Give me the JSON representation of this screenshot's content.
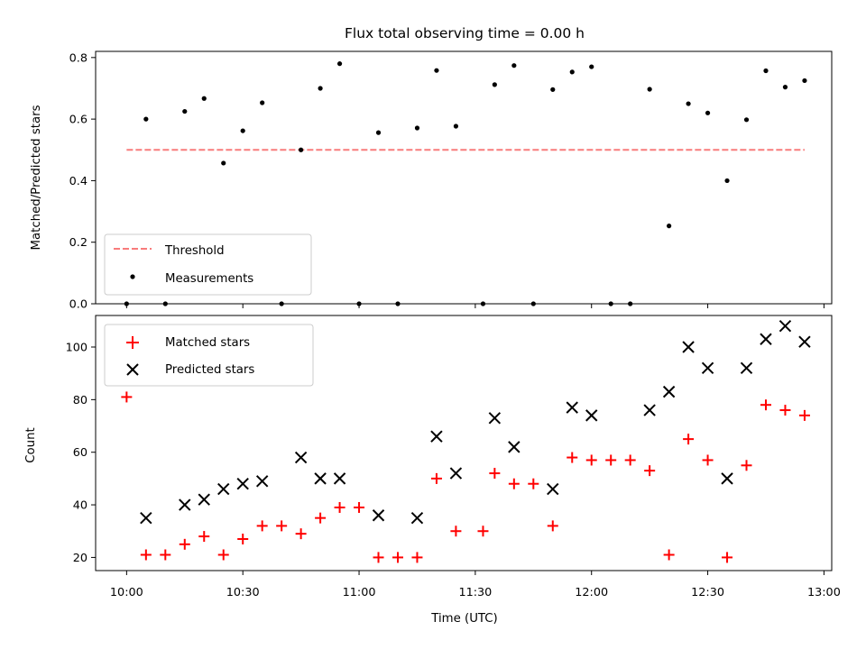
{
  "chart_data": [
    {
      "type": "scatter",
      "title": "Flux total observing time = 0.00 h",
      "xlabel": "",
      "ylabel": "Matched/Predicted stars",
      "ylim": [
        0,
        0.82
      ],
      "xlim": [
        "09:52",
        "13:02"
      ],
      "yticks": [
        "0.0",
        "0.2",
        "0.4",
        "0.6",
        "0.8"
      ],
      "legend_position": "lower-left",
      "threshold": {
        "name": "Threshold",
        "value": 0.5,
        "x_range": [
          "10:00",
          "12:55"
        ],
        "color": "#f87c7c",
        "style": "dashed"
      },
      "series": [
        {
          "name": "Measurements",
          "color": "#000000",
          "marker": "dot",
          "points": [
            {
              "x": "10:00",
              "y": 0.0
            },
            {
              "x": "10:05",
              "y": 0.6
            },
            {
              "x": "10:10",
              "y": 0.0
            },
            {
              "x": "10:15",
              "y": 0.625
            },
            {
              "x": "10:20",
              "y": 0.667
            },
            {
              "x": "10:25",
              "y": 0.457
            },
            {
              "x": "10:30",
              "y": 0.562
            },
            {
              "x": "10:35",
              "y": 0.653
            },
            {
              "x": "10:40",
              "y": 0.0
            },
            {
              "x": "10:45",
              "y": 0.5
            },
            {
              "x": "10:50",
              "y": 0.7
            },
            {
              "x": "10:55",
              "y": 0.78
            },
            {
              "x": "11:00",
              "y": 0.0
            },
            {
              "x": "11:05",
              "y": 0.556
            },
            {
              "x": "11:10",
              "y": 0.0
            },
            {
              "x": "11:15",
              "y": 0.571
            },
            {
              "x": "11:20",
              "y": 0.758
            },
            {
              "x": "11:25",
              "y": 0.577
            },
            {
              "x": "11:32",
              "y": 0.0
            },
            {
              "x": "11:35",
              "y": 0.712
            },
            {
              "x": "11:40",
              "y": 0.774
            },
            {
              "x": "11:45",
              "y": 0.0
            },
            {
              "x": "11:50",
              "y": 0.696
            },
            {
              "x": "11:55",
              "y": 0.753
            },
            {
              "x": "12:00",
              "y": 0.77
            },
            {
              "x": "12:05",
              "y": 0.0
            },
            {
              "x": "12:10",
              "y": 0.0
            },
            {
              "x": "12:15",
              "y": 0.697
            },
            {
              "x": "12:20",
              "y": 0.253
            },
            {
              "x": "12:25",
              "y": 0.65
            },
            {
              "x": "12:30",
              "y": 0.62
            },
            {
              "x": "12:35",
              "y": 0.4
            },
            {
              "x": "12:40",
              "y": 0.598
            },
            {
              "x": "12:45",
              "y": 0.757
            },
            {
              "x": "12:50",
              "y": 0.704
            },
            {
              "x": "12:55",
              "y": 0.725
            }
          ]
        }
      ]
    },
    {
      "type": "scatter",
      "title": "",
      "xlabel": "Time (UTC)",
      "ylabel": "Count",
      "ylim": [
        15,
        112
      ],
      "xlim": [
        "09:52",
        "13:02"
      ],
      "xticks": [
        "10:00",
        "10:30",
        "11:00",
        "11:30",
        "12:00",
        "12:30",
        "13:00"
      ],
      "yticks": [
        "20",
        "40",
        "60",
        "80",
        "100"
      ],
      "legend_position": "top-left",
      "series": [
        {
          "name": "Matched stars",
          "color": "#ff0000",
          "marker": "plus",
          "points": [
            {
              "x": "10:00",
              "y": 81
            },
            {
              "x": "10:05",
              "y": 21
            },
            {
              "x": "10:10",
              "y": 21
            },
            {
              "x": "10:15",
              "y": 25
            },
            {
              "x": "10:20",
              "y": 28
            },
            {
              "x": "10:25",
              "y": 21
            },
            {
              "x": "10:30",
              "y": 27
            },
            {
              "x": "10:35",
              "y": 32
            },
            {
              "x": "10:40",
              "y": 32
            },
            {
              "x": "10:45",
              "y": 29
            },
            {
              "x": "10:50",
              "y": 35
            },
            {
              "x": "10:55",
              "y": 39
            },
            {
              "x": "11:00",
              "y": 39
            },
            {
              "x": "11:05",
              "y": 20
            },
            {
              "x": "11:10",
              "y": 20
            },
            {
              "x": "11:15",
              "y": 20
            },
            {
              "x": "11:20",
              "y": 50
            },
            {
              "x": "11:25",
              "y": 30
            },
            {
              "x": "11:32",
              "y": 30
            },
            {
              "x": "11:35",
              "y": 52
            },
            {
              "x": "11:40",
              "y": 48
            },
            {
              "x": "11:45",
              "y": 48
            },
            {
              "x": "11:50",
              "y": 32
            },
            {
              "x": "11:55",
              "y": 58
            },
            {
              "x": "12:00",
              "y": 57
            },
            {
              "x": "12:05",
              "y": 57
            },
            {
              "x": "12:10",
              "y": 57
            },
            {
              "x": "12:15",
              "y": 53
            },
            {
              "x": "12:20",
              "y": 21
            },
            {
              "x": "12:25",
              "y": 65
            },
            {
              "x": "12:30",
              "y": 57
            },
            {
              "x": "12:35",
              "y": 20
            },
            {
              "x": "12:40",
              "y": 55
            },
            {
              "x": "12:45",
              "y": 78
            },
            {
              "x": "12:50",
              "y": 76
            },
            {
              "x": "12:55",
              "y": 74
            }
          ]
        },
        {
          "name": "Predicted stars",
          "color": "#000000",
          "marker": "x",
          "points": [
            {
              "x": "10:05",
              "y": 35
            },
            {
              "x": "10:15",
              "y": 40
            },
            {
              "x": "10:20",
              "y": 42
            },
            {
              "x": "10:25",
              "y": 46
            },
            {
              "x": "10:30",
              "y": 48
            },
            {
              "x": "10:35",
              "y": 49
            },
            {
              "x": "10:45",
              "y": 58
            },
            {
              "x": "10:50",
              "y": 50
            },
            {
              "x": "10:55",
              "y": 50
            },
            {
              "x": "11:05",
              "y": 36
            },
            {
              "x": "11:15",
              "y": 35
            },
            {
              "x": "11:20",
              "y": 66
            },
            {
              "x": "11:25",
              "y": 52
            },
            {
              "x": "11:35",
              "y": 73
            },
            {
              "x": "11:40",
              "y": 62
            },
            {
              "x": "11:50",
              "y": 46
            },
            {
              "x": "11:55",
              "y": 77
            },
            {
              "x": "12:00",
              "y": 74
            },
            {
              "x": "12:15",
              "y": 76
            },
            {
              "x": "12:20",
              "y": 83
            },
            {
              "x": "12:25",
              "y": 100
            },
            {
              "x": "12:30",
              "y": 92
            },
            {
              "x": "12:35",
              "y": 50
            },
            {
              "x": "12:40",
              "y": 92
            },
            {
              "x": "12:45",
              "y": 103
            },
            {
              "x": "12:50",
              "y": 108
            },
            {
              "x": "12:55",
              "y": 102
            }
          ]
        }
      ]
    }
  ]
}
